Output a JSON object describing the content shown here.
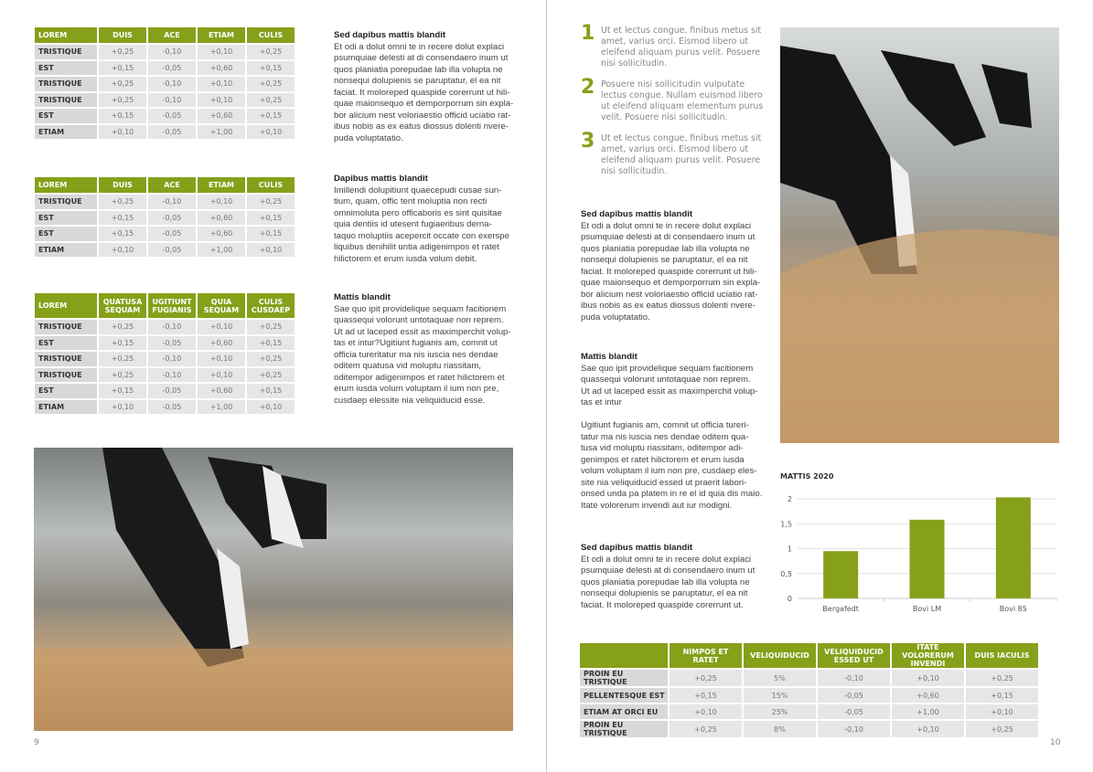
{
  "colors": {
    "accent": "#86a01a",
    "row": "#e6e6e6",
    "label_cell": "#d8d8d8"
  },
  "left_page": {
    "page_number": "9",
    "tables": [
      {
        "headers": [
          "LOREM",
          "DUIS",
          "ACE",
          "ETIAM",
          "CULIS"
        ],
        "rows": [
          [
            "TRISTIQUE",
            "+0,25",
            "-0,10",
            "+0,10",
            "+0,25"
          ],
          [
            "EST",
            "+0,15",
            "-0,05",
            "+0,60",
            "+0,15"
          ],
          [
            "TRISTIQUE",
            "+0,25",
            "-0,10",
            "+0,10",
            "+0,25"
          ],
          [
            "TRISTIQUE",
            "+0,25",
            "-0,10",
            "+0,10",
            "+0,25"
          ],
          [
            "EST",
            "+0,15",
            "-0,05",
            "+0,60",
            "+0,15"
          ],
          [
            "ETIAM",
            "+0,10",
            "-0,05",
            "+1,00",
            "+0,10"
          ]
        ]
      },
      {
        "headers": [
          "LOREM",
          "DUIS",
          "ACE",
          "ETIAM",
          "CULIS"
        ],
        "rows": [
          [
            "TRISTIQUE",
            "+0,25",
            "-0,10",
            "+0,10",
            "+0,25"
          ],
          [
            "EST",
            "+0,15",
            "-0,05",
            "+0,60",
            "+0,15"
          ],
          [
            "EST",
            "+0,15",
            "-0,05",
            "+0,60",
            "+0,15"
          ],
          [
            "ETIAM",
            "+0,10",
            "-0,05",
            "+1,00",
            "+0,10"
          ]
        ]
      },
      {
        "headers": [
          "LOREM",
          "QUATUSA SEQUAM",
          "UGITIUNT FUGIANIS",
          "QUIA SEQUAM",
          "CULIS CUSDAEP"
        ],
        "rows": [
          [
            "TRISTIQUE",
            "+0,25",
            "-0,10",
            "+0,10",
            "+0,25"
          ],
          [
            "EST",
            "+0,15",
            "-0,05",
            "+0,60",
            "+0,15"
          ],
          [
            "TRISTIQUE",
            "+0,25",
            "-0,10",
            "+0,10",
            "+0,25"
          ],
          [
            "TRISTIQUE",
            "+0,25",
            "-0,10",
            "+0,10",
            "+0,25"
          ],
          [
            "EST",
            "+0,15",
            "-0,05",
            "+0,60",
            "+0,15"
          ],
          [
            "ETIAM",
            "+0,10",
            "-0,05",
            "+1,00",
            "+0,10"
          ]
        ]
      }
    ],
    "texts": [
      {
        "heading": "Sed dapibus mattis blandit",
        "lines": [
          "Et odi a dolut omni te in recere dolut explaci",
          "psumquiae delesti at di consendaero inum ut",
          "quos planiatia porepudae lab illa volupta ne",
          "nonsequi dolupienis se paruptatur, el ea nit",
          "faciat. It moloreped quaspide corerrunt ut hili-",
          "quae maionsequo et demporporrum sin expla-",
          "bor alicium nest voloriaestio officid uciatio rat-",
          "ibus nobis as ex eatus diossus dolenti nvere-",
          "puda voluptatatio."
        ]
      },
      {
        "heading": "Dapibus mattis blandit",
        "lines": [
          "Imillendi dolupitiunt quaecepudi cusae sun-",
          "tium, quam, offic tent moluptia non recti",
          "omnimoluta pero officaboris es sint quisitae",
          "quia dentiis id utesent fugiaeribus derna-",
          "taquo moluptiis acepercit occate con exerspe",
          "liquibus denihilit untia adigenimpos et ratet",
          "hilictorem et erum iusda volum debit."
        ]
      },
      {
        "heading": "Mattis blandit",
        "lines": [
          "Sae quo ipit providelique sequam facitionem",
          "quassequi volorunt untotaquae non reprem.",
          "Ut ad ut laceped essit as maximperchit volup-",
          "tas et intur?Ugitiunt fugianis am, comnit ut",
          "officia tureritatur ma nis iuscia nes dendae",
          "oditem quatusa vid moluptu riassitam,",
          "oditempor adigenimpos et ratet hilictorem et",
          "erum iusda volum voluptam il ium non pre,",
          "cusdaep elessite nia veliquiducid esse."
        ]
      }
    ]
  },
  "right_page": {
    "page_number": "10",
    "numbered_list": [
      {
        "number": "1",
        "lines": [
          "Ut et lectus congue, finibus metus sit",
          "amet, varius orci. Eismod libero ut",
          "eleifend aliquam purus velit. Posuere",
          "nisi sollicitudin."
        ]
      },
      {
        "number": "2",
        "lines": [
          "Posuere nisi sollicitudin vulputate",
          "lectus congue. Nullam euismod libero",
          "ut eleifend aliquam elementum purus",
          "velit. Posuere nisi sollicitudin."
        ]
      },
      {
        "number": "3",
        "lines": [
          "Ut et lectus congue, finibus metus sit",
          "amet, varius orci. Eismod libero ut",
          "eleifend aliquam purus velit. Posuere",
          "nisi sollicitudin."
        ]
      }
    ],
    "texts": [
      {
        "heading": "Sed dapibus mattis blandit",
        "lines": [
          "Et odi a dolut omni te in recere dolut explaci",
          "psumquiae delesti at di consendaero inum ut",
          "quos planiatia porepudae lab illa volupta ne",
          "nonsequi dolupienis se paruptatur, el ea nit",
          "faciat. It moloreped quaspide corerrunt ut hili-",
          "quae maionsequo et demporporrum sin expla-",
          "bor alicium nest voloriaestio officid uciatio rat-",
          "ibus nobis as ex eatus diossus dolenti nvere-",
          "puda voluptatatio."
        ]
      },
      {
        "heading": "Mattis blandit",
        "lines": [
          "Sae quo ipit providelique sequam facitionem",
          "quassequi volorunt untotaquae non reprem.",
          "Ut ad ut laceped essit as maximperchit volup-",
          "tas et intur",
          " ",
          "Ugitiunt fugianis am, comnit ut officia tureri-",
          "tatur ma nis iuscia nes dendae oditem qua-",
          "tusa vid moluptu riassitam, oditempor adi-",
          "genimpos et ratet hilictorem et erum iusda",
          "volum voluptam il ium non pre, cusdaep eles-",
          "site nia veliquiducid essed ut praerit labori-",
          "onsed unda pa platem in re el id quia dis maio.",
          "Itate volorerum invendi aut iur modigni."
        ]
      },
      {
        "heading": "Sed dapibus mattis blandit",
        "lines": [
          "Et odi a dolut omni te in recere dolut explaci",
          "psumquiae delesti at di consendaero inum ut",
          "quos planiatia porepudae lab illa volupta ne",
          "nonsequi dolupienis se paruptatur, el ea nit",
          "faciat. It moloreped quaspide corerrunt ut."
        ]
      }
    ],
    "table": {
      "headers": [
        "",
        "NIMPOS ET RATET",
        "VELIQUIDUCID",
        "VELIQUIDUCID ESSED UT",
        "ITATE VOLORERUM INVENDI",
        "DUIS IACULIS"
      ],
      "rows": [
        [
          "PROIN EU TRISTIQUE",
          "+0,25",
          "5%",
          "-0,10",
          "+0,10",
          "+0,25"
        ],
        [
          "PELLENTESQUE EST",
          "+0,15",
          "15%",
          "-0,05",
          "+0,60",
          "+0,15"
        ],
        [
          "ETIAM AT ORCI EU",
          "+0,10",
          "25%",
          "-0,05",
          "+1,00",
          "+0,10"
        ],
        [
          "PROIN EU TRISTIQUE",
          "+0,25",
          "8%",
          "-0,10",
          "+0,10",
          "+0,25"
        ]
      ]
    }
  },
  "chart_data": {
    "type": "bar",
    "title": "MATTIS 2020",
    "categories": [
      "Bergafedt",
      "Bovi LM",
      "Bovi 85"
    ],
    "values": [
      0.95,
      1.58,
      2.03
    ],
    "ylim": [
      0,
      2
    ],
    "yticks": [
      "0",
      "0,5",
      "1",
      "1,5",
      "2"
    ],
    "grid": true,
    "color": "#86a01a"
  }
}
